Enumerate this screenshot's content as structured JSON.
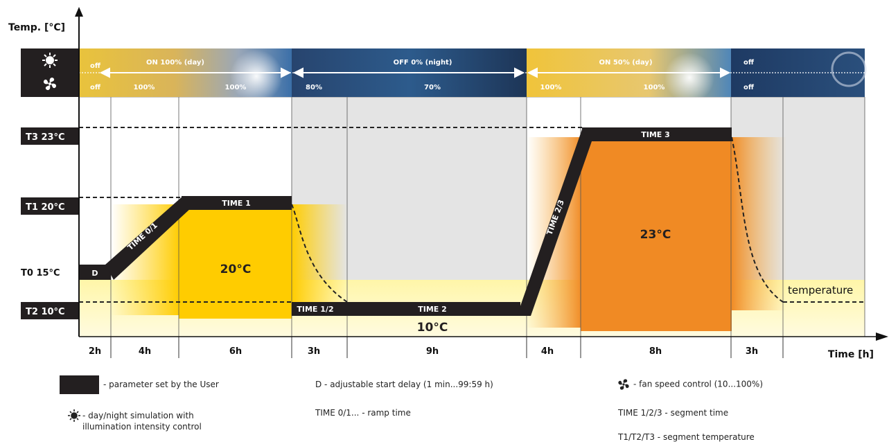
{
  "axes": {
    "y_title": "Temp. [°C]",
    "x_title": "Time [h]"
  },
  "temp_labels": {
    "t3": "T3 23°C",
    "t1": "T1 20°C",
    "t0": "T0 15°C",
    "t2": "T2 10°C"
  },
  "day_night_bar": {
    "sun_icon": "sun-icon",
    "fan_icon": "fan-icon",
    "light_row": {
      "off1": "off",
      "on_day": "ON 100% (day)",
      "off_night": "OFF 0% (night)",
      "on_half": "ON 50% (day)",
      "off2": "off"
    },
    "fan_row": {
      "f1": "off",
      "f2": "100%",
      "f3": "100%",
      "f4": "80%",
      "f5": "70%",
      "f6": "100%",
      "f7": "100%",
      "f8": "off"
    }
  },
  "segments": {
    "d": "D",
    "time01": "TIME 0/1",
    "time1": "TIME 1",
    "time12": "TIME 1/2",
    "time2": "TIME 2",
    "time23": "TIME 2/3",
    "time3": "TIME 3",
    "temperature": "temperature"
  },
  "zone_temps": {
    "z1": "20°C",
    "z2": "10°C",
    "z3": "23°C"
  },
  "durations": [
    "2h",
    "4h",
    "6h",
    "3h",
    "9h",
    "4h",
    "8h",
    "3h"
  ],
  "legend": {
    "user_param": "- parameter set by the User",
    "day_night_1": "- day/night simulation with",
    "day_night_2": "illumination intensity control",
    "delay": "D  - adjustable start delay (1 min...99:59 h)",
    "ramp": "TIME 0/1... - ramp time",
    "fan": "- fan speed control (10...100%)",
    "segment_time": "TIME 1/2/3 - segment time",
    "segment_temp": "T1/T2/T3 - segment temperature"
  },
  "colors": {
    "black": "#231f20",
    "yellow": "#ffcc00",
    "orange": "#f08a24",
    "pale_yellow": "#fff7b8",
    "grey": "#e4e4e4"
  }
}
